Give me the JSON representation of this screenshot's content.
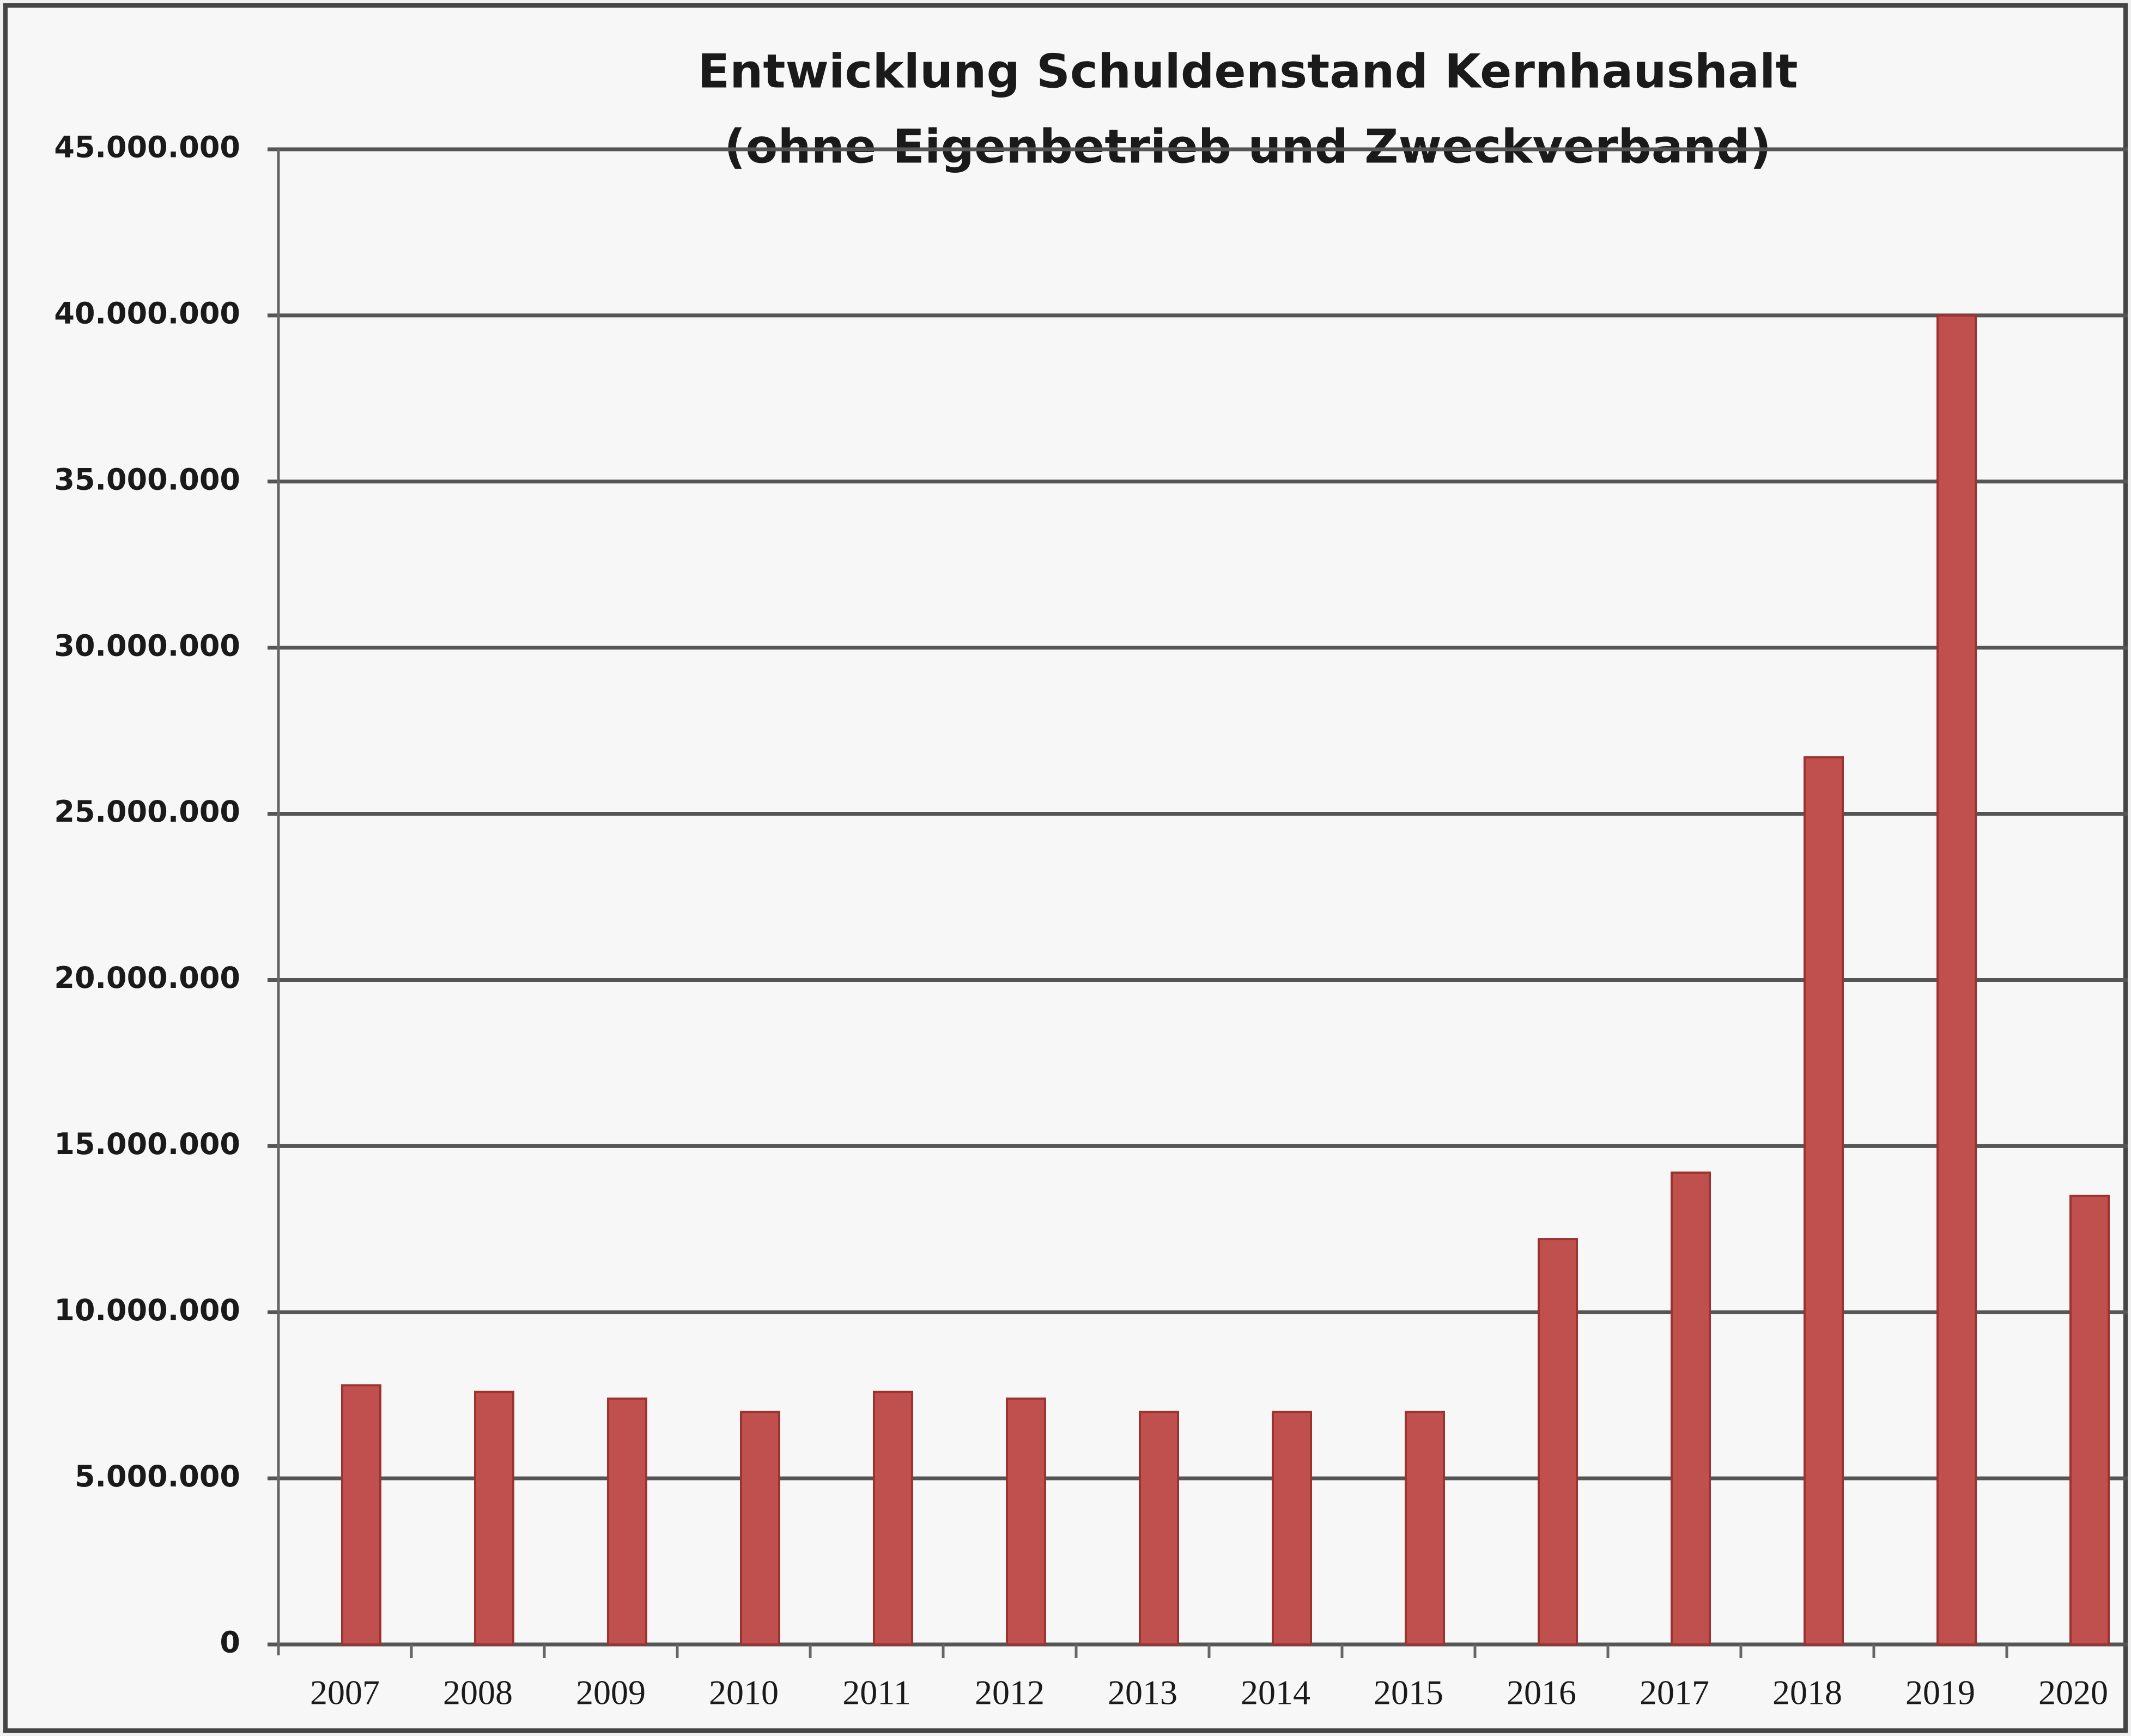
{
  "chart_data": {
    "type": "bar",
    "title": "Entwicklung Schuldenstand Kernhaushalt",
    "subtitle": "(ohne Eigenbetrieb und Zweckverband)",
    "categories": [
      "2007",
      "2008",
      "2009",
      "2010",
      "2011",
      "2012",
      "2013",
      "2014",
      "2015",
      "2016",
      "2017",
      "2018",
      "2019",
      "2020"
    ],
    "values": [
      7800000,
      7600000,
      7400000,
      7000000,
      7600000,
      7400000,
      7000000,
      7000000,
      7000000,
      12200000,
      14200000,
      26700000,
      40000000,
      13500000
    ],
    "color": "#c0504d",
    "ylim": [
      0,
      45000000
    ],
    "yticks": [
      0,
      {
        "value": 5000000,
        "label": "5.000.000"
      },
      {
        "value": 10000000,
        "label": "10.000.000"
      },
      {
        "value": 15000000,
        "label": "15.000.000"
      },
      {
        "value": 20000000,
        "label": "20.000.000"
      },
      {
        "value": 25000000,
        "label": "25.000.000"
      },
      {
        "value": 30000000,
        "label": "30.000.000"
      },
      {
        "value": 35000000,
        "label": "35.000.000"
      },
      {
        "value": 40000000,
        "label": "40.000.000"
      },
      {
        "value": 45000000,
        "label": "45.000.000"
      }
    ],
    "grid": true
  }
}
